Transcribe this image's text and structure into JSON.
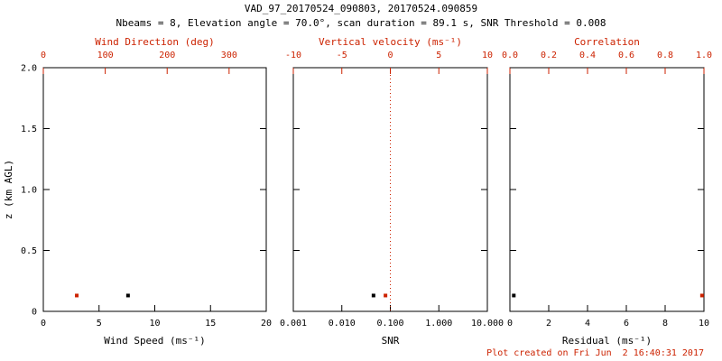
{
  "title": "VAD_97_20170524_090803, 20170524.090859",
  "subtitle": "Nbeams = 8, Elevation angle = 70.0°, scan duration = 89.1 s, SNR Threshold = 0.008",
  "footer": "Plot created on Fri Jun  2 16:40:31 2017",
  "ylabel": "z (km AGL)",
  "colors": {
    "red": "#cc2200",
    "black": "#000000"
  },
  "y_axis": {
    "min": 0,
    "max": 2,
    "ticks": [
      {
        "v": 0,
        "label": "0"
      },
      {
        "v": 0.5,
        "label": "0.5"
      },
      {
        "v": 1.0,
        "label": "1.0"
      },
      {
        "v": 1.5,
        "label": "1.5"
      },
      {
        "v": 2.0,
        "label": "2.0"
      }
    ]
  },
  "chart_data": [
    {
      "type": "scatter",
      "id": "wind",
      "xlabel_bottom": "Wind Speed (ms⁻¹)",
      "xlabel_top": "Wind Direction (deg)",
      "bottom_axis": {
        "scale": "linear",
        "min": 0,
        "max": 20,
        "ticks": [
          {
            "v": 0,
            "label": "0"
          },
          {
            "v": 5,
            "label": "5"
          },
          {
            "v": 10,
            "label": "10"
          },
          {
            "v": 15,
            "label": "15"
          },
          {
            "v": 20,
            "label": "20"
          }
        ]
      },
      "top_axis": {
        "scale": "linear",
        "min": 0,
        "max": 360,
        "ticks": [
          {
            "v": 0,
            "label": "0"
          },
          {
            "v": 100,
            "label": "100"
          },
          {
            "v": 200,
            "label": "200"
          },
          {
            "v": 300,
            "label": "300"
          }
        ]
      },
      "series": [
        {
          "name": "wind-speed",
          "axis": "bottom",
          "color": "black",
          "points": [
            {
              "x": 7.6,
              "z": 0.13
            }
          ]
        },
        {
          "name": "wind-direction",
          "axis": "top",
          "color": "red",
          "points": [
            {
              "x": 54,
              "z": 0.13
            }
          ]
        }
      ]
    },
    {
      "type": "scatter",
      "id": "snr",
      "xlabel_bottom": "SNR",
      "xlabel_top": "Vertical velocity (ms⁻¹)",
      "bottom_axis": {
        "scale": "log",
        "min": 0.001,
        "max": 10,
        "ticks": [
          {
            "v": 0.001,
            "label": "0.001"
          },
          {
            "v": 0.01,
            "label": "0.010"
          },
          {
            "v": 0.1,
            "label": "0.100"
          },
          {
            "v": 1,
            "label": "1.000"
          },
          {
            "v": 10,
            "label": "10.000"
          }
        ]
      },
      "top_axis": {
        "scale": "linear",
        "min": -10,
        "max": 10,
        "ticks": [
          {
            "v": -10,
            "label": "-10"
          },
          {
            "v": -5,
            "label": "-5"
          },
          {
            "v": 0,
            "label": "0"
          },
          {
            "v": 5,
            "label": "5"
          },
          {
            "v": 10,
            "label": "10"
          }
        ]
      },
      "refline": {
        "axis": "top",
        "value": 0,
        "color": "red",
        "style": "dotted"
      },
      "series": [
        {
          "name": "snr",
          "axis": "bottom",
          "color": "black",
          "points": [
            {
              "x": 0.045,
              "z": 0.13
            }
          ]
        },
        {
          "name": "vertical-velocity",
          "axis": "top",
          "color": "red",
          "points": [
            {
              "x": -0.5,
              "z": 0.13
            }
          ]
        }
      ]
    },
    {
      "type": "scatter",
      "id": "residual",
      "xlabel_bottom": "Residual (ms⁻¹)",
      "xlabel_top": "Correlation",
      "bottom_axis": {
        "scale": "linear",
        "min": 0,
        "max": 10,
        "ticks": [
          {
            "v": 0,
            "label": "0"
          },
          {
            "v": 2,
            "label": "2"
          },
          {
            "v": 4,
            "label": "4"
          },
          {
            "v": 6,
            "label": "6"
          },
          {
            "v": 8,
            "label": "8"
          },
          {
            "v": 10,
            "label": "10"
          }
        ]
      },
      "top_axis": {
        "scale": "linear",
        "min": 0,
        "max": 1,
        "ticks": [
          {
            "v": 0,
            "label": "0.0"
          },
          {
            "v": 0.2,
            "label": "0.2"
          },
          {
            "v": 0.4,
            "label": "0.4"
          },
          {
            "v": 0.6,
            "label": "0.6"
          },
          {
            "v": 0.8,
            "label": "0.8"
          },
          {
            "v": 1,
            "label": "1.0"
          }
        ]
      },
      "series": [
        {
          "name": "residual",
          "axis": "bottom",
          "color": "black",
          "points": [
            {
              "x": 0.2,
              "z": 0.13
            }
          ]
        },
        {
          "name": "correlation",
          "axis": "top",
          "color": "red",
          "points": [
            {
              "x": 0.99,
              "z": 0.13
            }
          ]
        }
      ]
    }
  ]
}
